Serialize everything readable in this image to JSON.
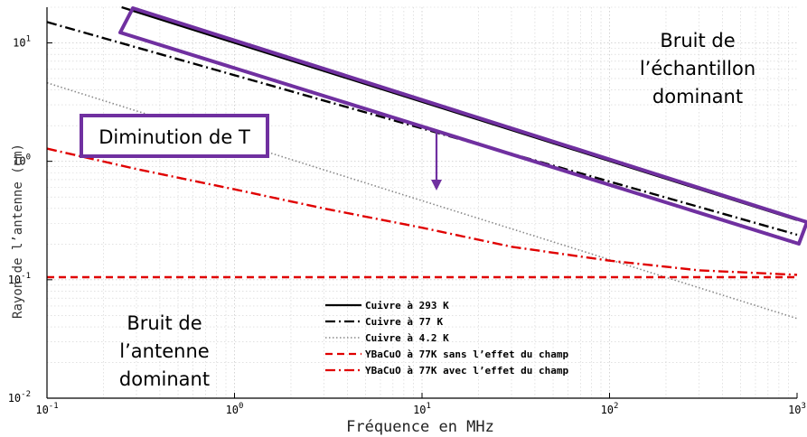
{
  "chart_data": {
    "type": "line",
    "xlabel": "Fréquence en MHz",
    "ylabel": "Rayon de l’antenne (cm)",
    "x_scale": "log",
    "y_scale": "log",
    "xlim": [
      0.1,
      1000
    ],
    "ylim": [
      0.01,
      20
    ],
    "x_ticks": [
      {
        "value": 0.1,
        "base": "10",
        "exp": "-1"
      },
      {
        "value": 1,
        "base": "10",
        "exp": "0"
      },
      {
        "value": 10,
        "base": "10",
        "exp": "1"
      },
      {
        "value": 100,
        "base": "10",
        "exp": "2"
      },
      {
        "value": 1000,
        "base": "10",
        "exp": "3"
      }
    ],
    "y_ticks": [
      {
        "value": 0.01,
        "base": "10",
        "exp": "-2"
      },
      {
        "value": 0.1,
        "base": "10",
        "exp": "-1"
      },
      {
        "value": 1,
        "base": "10",
        "exp": "0"
      },
      {
        "value": 10,
        "base": "10",
        "exp": "1"
      }
    ],
    "grid": true,
    "legend_position": "bottom-center",
    "series": [
      {
        "name": "Cuivre à 293 K",
        "color": "#000000",
        "style": "solid",
        "x": [
          0.25,
          1000
        ],
        "y": [
          20.0,
          0.32
        ]
      },
      {
        "name": "Cuivre à 77 K",
        "color": "#000000",
        "style": "dashdot",
        "x": [
          0.1,
          1000
        ],
        "y": [
          15.0,
          0.24
        ]
      },
      {
        "name": "Cuivre à 4.2 K",
        "color": "#888888",
        "style": "dotted",
        "x": [
          0.1,
          1000
        ],
        "y": [
          4.6,
          0.047
        ]
      },
      {
        "name": "YBaCuO à 77K sans l’effet du champ",
        "color": "#e00000",
        "style": "dashed",
        "x": [
          0.1,
          1000
        ],
        "y": [
          0.105,
          0.105
        ]
      },
      {
        "name": "YBaCuO à 77K avec l’effet du champ",
        "color": "#e00000",
        "style": "dashdot",
        "x": [
          0.1,
          0.3,
          1,
          3,
          10,
          30,
          100,
          300,
          1000
        ],
        "y": [
          1.28,
          0.86,
          0.58,
          0.4,
          0.275,
          0.19,
          0.145,
          0.12,
          0.11
        ]
      }
    ],
    "annotations": {
      "temp_box": "Diminution de T",
      "sample_noise": [
        "Bruit de",
        "l’échantillon",
        "dominant"
      ],
      "antenna_noise": [
        "Bruit de",
        "l’antenne",
        "dominant"
      ]
    },
    "colors": {
      "annotation_box": "#7030a0",
      "arrow": "#7030a0",
      "grid": "#cfcfcf"
    }
  }
}
